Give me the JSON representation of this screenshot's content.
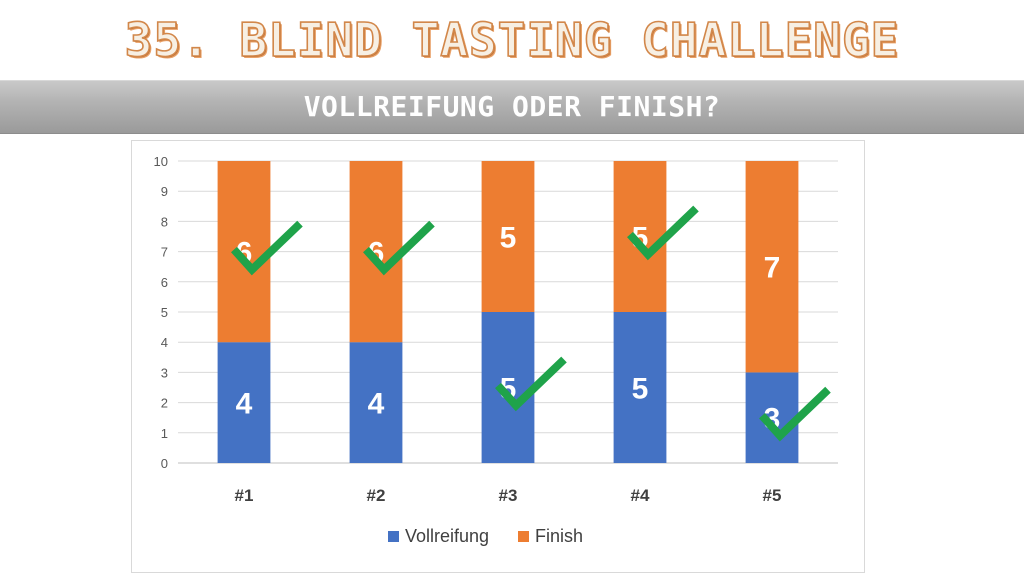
{
  "title": "35. BLIND TASTING CHALLENGE",
  "subtitle": "VOLLREIFUNG ODER FINISH?",
  "chart_data": {
    "type": "bar",
    "stacked": true,
    "categories": [
      "#1",
      "#2",
      "#3",
      "#4",
      "#5"
    ],
    "series": [
      {
        "name": "Vollreifung",
        "values": [
          4,
          4,
          5,
          5,
          3
        ],
        "color": "#4472c4",
        "correct": [
          false,
          false,
          true,
          false,
          true
        ]
      },
      {
        "name": "Finish",
        "values": [
          6,
          6,
          5,
          5,
          7
        ],
        "color": "#ed7d31",
        "correct": [
          true,
          true,
          false,
          true,
          false
        ]
      }
    ],
    "ylim": [
      0,
      10
    ],
    "yticks": [
      0,
      1,
      2,
      3,
      4,
      5,
      6,
      7,
      8,
      9,
      10
    ],
    "grid": true,
    "legend_position": "bottom",
    "check_color": "#1fa34a"
  }
}
